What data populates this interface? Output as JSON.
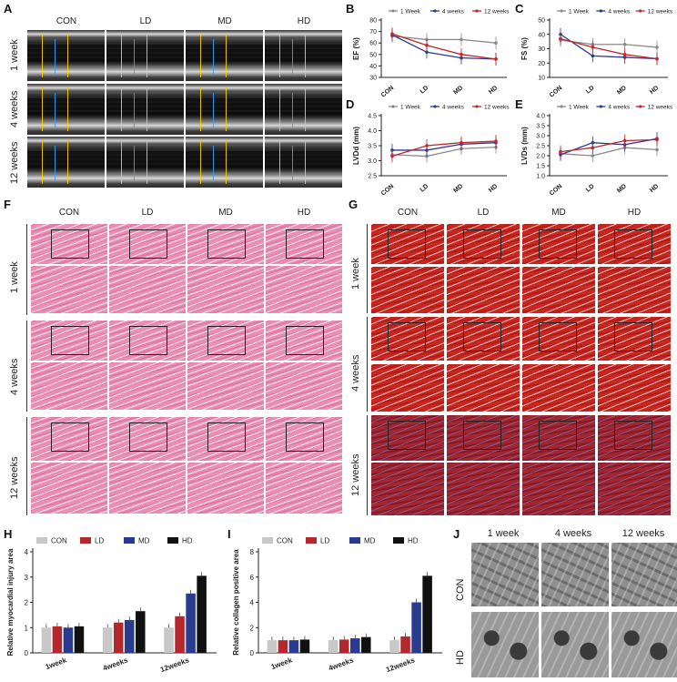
{
  "panels": {
    "A": "A",
    "B": "B",
    "C": "C",
    "D": "D",
    "E": "E",
    "F": "F",
    "G": "G",
    "H": "H",
    "I": "I",
    "J": "J"
  },
  "groups": [
    "CON",
    "LD",
    "MD",
    "HD"
  ],
  "timepoints": [
    "1 week",
    "4 weeks",
    "12 weeks"
  ],
  "tem_groups": [
    "CON",
    "HD"
  ],
  "tem_times": [
    "1 week",
    "4 weeks",
    "12 weeks"
  ],
  "colors": {
    "one_week": "#8a8a8a",
    "four_weeks": "#2b3990",
    "twelve_weeks": "#c1272d",
    "CON": "#c8c8c8",
    "LD": "#b3282d",
    "MD": "#283b8e",
    "HD": "#111111"
  },
  "chart_data": [
    {
      "id": "B",
      "type": "line",
      "ylabel": "EF (%)",
      "categories": [
        "CON",
        "LD",
        "MD",
        "HD"
      ],
      "ylim": [
        30,
        80
      ],
      "yticks": [
        30,
        40,
        50,
        60,
        70,
        80
      ],
      "series": [
        {
          "name": "1 Week",
          "values": [
            66,
            63,
            63,
            60
          ]
        },
        {
          "name": "4 weeks",
          "values": [
            67,
            52,
            47,
            46
          ]
        },
        {
          "name": "12 weeks",
          "values": [
            68,
            58,
            50,
            46
          ]
        }
      ],
      "legend": "top"
    },
    {
      "id": "C",
      "type": "line",
      "ylabel": "FS (%)",
      "categories": [
        "CON",
        "LD",
        "MD",
        "HD"
      ],
      "ylim": [
        10,
        50
      ],
      "yticks": [
        10,
        20,
        30,
        40,
        50
      ],
      "series": [
        {
          "name": "1 Week",
          "values": [
            36,
            33,
            33,
            31
          ]
        },
        {
          "name": "4 weeks",
          "values": [
            40,
            25,
            24,
            23
          ]
        },
        {
          "name": "12 weeks",
          "values": [
            37,
            31,
            26,
            23
          ]
        }
      ],
      "legend": "top"
    },
    {
      "id": "D",
      "type": "line",
      "ylabel": "LVDd (mm)",
      "categories": [
        "CON",
        "LD",
        "MD",
        "HD"
      ],
      "ylim": [
        2.5,
        4.5
      ],
      "yticks": [
        2.5,
        3.0,
        3.5,
        4.0,
        4.5
      ],
      "series": [
        {
          "name": "1 Week",
          "values": [
            3.2,
            3.15,
            3.4,
            3.45
          ]
        },
        {
          "name": "4 weeks",
          "values": [
            3.35,
            3.35,
            3.55,
            3.6
          ]
        },
        {
          "name": "12 weeks",
          "values": [
            3.15,
            3.5,
            3.6,
            3.65
          ]
        }
      ],
      "legend": "top"
    },
    {
      "id": "E",
      "type": "line",
      "ylabel": "LVDs (mm)",
      "categories": [
        "CON",
        "LD",
        "MD",
        "HD"
      ],
      "ylim": [
        1.0,
        4.0
      ],
      "yticks": [
        1.0,
        1.5,
        2.0,
        2.5,
        3.0,
        3.5,
        4.0
      ],
      "series": [
        {
          "name": "1 Week",
          "values": [
            2.1,
            2.0,
            2.4,
            2.3
          ]
        },
        {
          "name": "4 weeks",
          "values": [
            2.05,
            2.65,
            2.55,
            2.85
          ]
        },
        {
          "name": "12 weeks",
          "values": [
            2.2,
            2.4,
            2.75,
            2.8
          ]
        }
      ],
      "legend": "top"
    },
    {
      "id": "H",
      "type": "bar",
      "ylabel": "Relative myocardial injury area",
      "categories": [
        "1week",
        "4weeks",
        "12weeks"
      ],
      "ylim": [
        0,
        4
      ],
      "yticks": [
        0,
        1,
        2,
        3,
        4
      ],
      "series": [
        {
          "name": "CON",
          "values": [
            1.0,
            1.0,
            1.0
          ]
        },
        {
          "name": "LD",
          "values": [
            1.05,
            1.2,
            1.45
          ]
        },
        {
          "name": "MD",
          "values": [
            1.0,
            1.3,
            2.35
          ]
        },
        {
          "name": "HD",
          "values": [
            1.05,
            1.65,
            3.05
          ]
        }
      ],
      "legend": "top"
    },
    {
      "id": "I",
      "type": "bar",
      "ylabel": "Relative collagen positive area",
      "categories": [
        "1week",
        "4weeks",
        "12weeks"
      ],
      "ylim": [
        0,
        8
      ],
      "yticks": [
        0,
        2,
        4,
        6,
        8
      ],
      "series": [
        {
          "name": "CON",
          "values": [
            1.0,
            1.0,
            1.0
          ]
        },
        {
          "name": "LD",
          "values": [
            1.0,
            1.05,
            1.3
          ]
        },
        {
          "name": "MD",
          "values": [
            1.0,
            1.15,
            4.0
          ]
        },
        {
          "name": "HD",
          "values": [
            1.05,
            1.25,
            6.1
          ]
        }
      ],
      "legend": "top"
    }
  ]
}
